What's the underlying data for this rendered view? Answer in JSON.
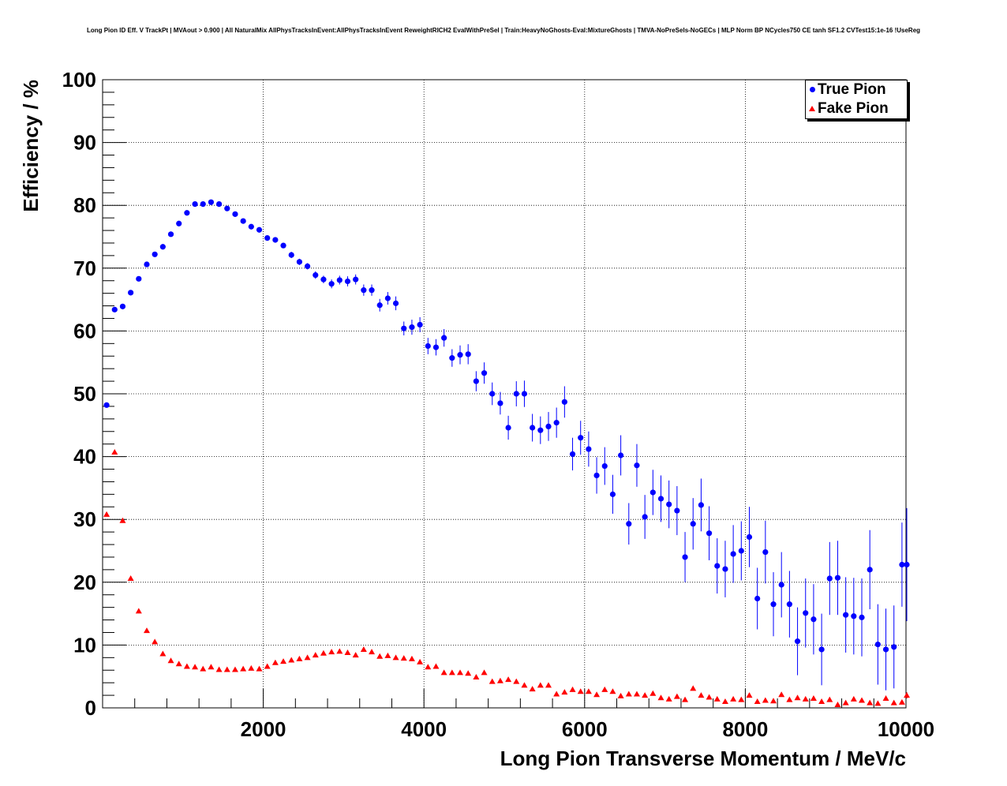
{
  "title": "Long Pion ID Eff. V TrackPt | MVAout > 0.900 | All NaturalMix AllPhysTracksInEvent:AllPhysTracksInEvent ReweightRICH2 EvalWithPreSel | Train:HeavyNoGhosts-Eval:MixtureGhosts | TMVA-NoPreSels-NoGECs | MLP Norm BP NCycles750 CE tanh SF1.2 CVTest15:1e-16 !UseReg",
  "colors": {
    "true_pion": "#0000ff",
    "fake_pion": "#ff0000"
  },
  "chart_data": {
    "type": "scatter",
    "title": "Long Pion ID Eff. V TrackPt | MVAout > 0.900 | All NaturalMix AllPhysTracksInEvent:AllPhysTracksInEvent ReweightRICH2 EvalWithPreSel | Train:HeavyNoGhosts-Eval:MixtureGhosts | TMVA-NoPreSels-NoGECs | MLP Norm BP NCycles750 CE tanh SF1.2 CVTest15:1e-16 !UseReg",
    "xlabel": "Long Pion Transverse Momentum / MeV/c",
    "ylabel": "Efficiency / %",
    "xlim": [
      0,
      10000
    ],
    "ylim": [
      0,
      100
    ],
    "xticks": [
      2000,
      4000,
      6000,
      8000,
      10000
    ],
    "yticks": [
      0,
      10,
      20,
      30,
      40,
      50,
      60,
      70,
      80,
      90,
      100
    ],
    "grid": true,
    "legend_position": "top-right",
    "series": [
      {
        "name": "True Pion",
        "marker": "circle",
        "color": "#0000ff",
        "x": [
          50,
          150,
          250,
          350,
          450,
          550,
          650,
          750,
          850,
          950,
          1050,
          1150,
          1250,
          1350,
          1450,
          1550,
          1650,
          1750,
          1850,
          1950,
          2050,
          2150,
          2250,
          2350,
          2450,
          2550,
          2650,
          2750,
          2850,
          2950,
          3050,
          3150,
          3250,
          3350,
          3450,
          3550,
          3650,
          3750,
          3850,
          3950,
          4050,
          4150,
          4250,
          4350,
          4450,
          4550,
          4650,
          4750,
          4850,
          4950,
          5050,
          5150,
          5250,
          5350,
          5450,
          5550,
          5650,
          5750,
          5850,
          5950,
          6050,
          6150,
          6250,
          6350,
          6450,
          6550,
          6650,
          6750,
          6850,
          6950,
          7050,
          7150,
          7250,
          7350,
          7450,
          7550,
          7650,
          7750,
          7850,
          7950,
          8050,
          8150,
          8250,
          8350,
          8450,
          8550,
          8650,
          8750,
          8850,
          8950,
          9050,
          9150,
          9250,
          9350,
          9450,
          9550,
          9650,
          9750,
          9850,
          9950
        ],
        "y": [
          48.2,
          63.4,
          63.9,
          66.1,
          68.3,
          70.6,
          72.2,
          73.4,
          75.4,
          77.1,
          78.8,
          80.2,
          80.2,
          80.5,
          80.2,
          79.5,
          78.6,
          77.5,
          76.6,
          76.1,
          74.8,
          74.5,
          73.6,
          72.1,
          71.0,
          70.3,
          68.9,
          68.2,
          67.5,
          68.1,
          67.9,
          68.2,
          66.5,
          66.5,
          64.1,
          65.2,
          64.4,
          60.4,
          60.6,
          61.0,
          57.6,
          57.4,
          58.9,
          55.7,
          56.2,
          56.3,
          52.0,
          53.3,
          50.0,
          48.5,
          44.6,
          50.0,
          50.0,
          44.6,
          44.2,
          44.8,
          45.4,
          48.7,
          40.4,
          43.0,
          41.2,
          37.0,
          38.5,
          34.0,
          40.2,
          29.3,
          38.6,
          30.4,
          34.3,
          33.3,
          32.4,
          31.4,
          24.0,
          29.3,
          32.3,
          27.8,
          22.6,
          22.1,
          24.5,
          25.0,
          27.2,
          17.4,
          24.8,
          16.5,
          19.6,
          16.5,
          10.6,
          15.1,
          14.1,
          9.3,
          20.6,
          20.7,
          14.8,
          14.6,
          14.4,
          22.0,
          10.1,
          9.3,
          9.7,
          22.8
        ],
        "yerr": [
          0.3,
          0.3,
          0.3,
          0.3,
          0.3,
          0.3,
          0.3,
          0.3,
          0.3,
          0.3,
          0.3,
          0.3,
          0.3,
          0.3,
          0.3,
          0.3,
          0.3,
          0.3,
          0.3,
          0.4,
          0.4,
          0.4,
          0.4,
          0.5,
          0.5,
          0.5,
          0.6,
          0.6,
          0.7,
          0.7,
          0.8,
          0.8,
          0.9,
          0.9,
          1.0,
          1.0,
          1.1,
          1.1,
          1.2,
          1.2,
          1.3,
          1.3,
          1.4,
          1.4,
          1.5,
          1.6,
          1.6,
          1.7,
          1.8,
          1.8,
          1.9,
          2.0,
          2.1,
          2.2,
          2.2,
          2.3,
          2.4,
          2.5,
          2.6,
          2.7,
          2.8,
          2.9,
          3.0,
          3.1,
          3.2,
          3.3,
          3.4,
          3.5,
          3.6,
          3.7,
          3.8,
          3.9,
          4.0,
          4.1,
          4.2,
          4.3,
          4.4,
          4.5,
          4.6,
          4.7,
          4.8,
          4.9,
          5.0,
          5.1,
          5.2,
          5.3,
          5.4,
          5.5,
          5.6,
          5.7,
          5.8,
          5.9,
          6.0,
          6.1,
          6.2,
          6.3,
          6.4,
          6.5,
          6.6,
          6.7
        ]
      },
      {
        "name": "Fake Pion",
        "marker": "triangle",
        "color": "#ff0000",
        "x": [
          50,
          150,
          250,
          350,
          450,
          550,
          650,
          750,
          850,
          950,
          1050,
          1150,
          1250,
          1350,
          1450,
          1550,
          1650,
          1750,
          1850,
          1950,
          2050,
          2150,
          2250,
          2350,
          2450,
          2550,
          2650,
          2750,
          2850,
          2950,
          3050,
          3150,
          3250,
          3350,
          3450,
          3550,
          3650,
          3750,
          3850,
          3950,
          4050,
          4150,
          4250,
          4350,
          4450,
          4550,
          4650,
          4750,
          4850,
          4950,
          5050,
          5150,
          5250,
          5350,
          5450,
          5550,
          5650,
          5750,
          5850,
          5950,
          6050,
          6150,
          6250,
          6350,
          6450,
          6550,
          6650,
          6750,
          6850,
          6950,
          7050,
          7150,
          7250,
          7350,
          7450,
          7550,
          7650,
          7750,
          7850,
          7950,
          8050,
          8150,
          8250,
          8350,
          8450,
          8550,
          8650,
          8750,
          8850,
          8950,
          9050,
          9150,
          9250,
          9350,
          9450,
          9550,
          9650,
          9750,
          9850,
          9950
        ],
        "y": [
          30.8,
          40.7,
          29.8,
          20.6,
          15.4,
          12.3,
          10.5,
          8.6,
          7.5,
          7.0,
          6.6,
          6.5,
          6.2,
          6.5,
          6.1,
          6.1,
          6.1,
          6.2,
          6.3,
          6.2,
          6.6,
          7.2,
          7.4,
          7.6,
          7.8,
          8.0,
          8.4,
          8.7,
          8.9,
          9.0,
          8.8,
          8.4,
          9.3,
          8.9,
          8.2,
          8.3,
          8.0,
          7.9,
          7.8,
          7.3,
          6.5,
          6.6,
          5.6,
          5.6,
          5.6,
          5.5,
          4.9,
          5.6,
          4.2,
          4.3,
          4.5,
          4.2,
          3.6,
          3.0,
          3.6,
          3.6,
          2.2,
          2.5,
          2.9,
          2.6,
          2.6,
          2.1,
          2.9,
          2.6,
          1.9,
          2.2,
          2.2,
          2.0,
          2.3,
          1.6,
          1.4,
          1.8,
          1.3,
          3.1,
          2.0,
          1.7,
          1.4,
          1.0,
          1.4,
          1.3,
          2.0,
          1.0,
          1.2,
          1.1,
          2.1,
          1.3,
          1.6,
          1.4,
          1.5,
          1.0,
          1.3,
          0.5,
          0.8,
          1.4,
          1.2,
          0.8,
          0.7,
          1.5,
          0.8,
          0.9
        ]
      }
    ],
    "extra_points": [
      {
        "series": "True Pion",
        "x": 10010,
        "y": 22.8,
        "yerr": 9.0
      },
      {
        "series": "Fake Pion",
        "x": 10010,
        "y": 2.0,
        "yerr": 0.5
      }
    ]
  },
  "legend": {
    "items": [
      {
        "label": "True Pion",
        "marker": "circle",
        "color": "#0000ff"
      },
      {
        "label": "Fake Pion",
        "marker": "triangle",
        "color": "#ff0000"
      }
    ]
  }
}
